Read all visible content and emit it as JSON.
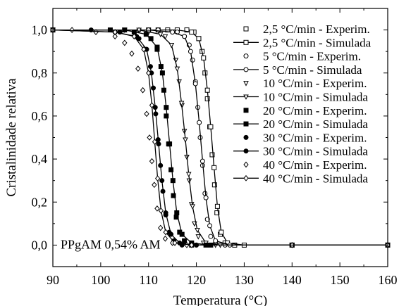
{
  "chart_data": {
    "type": "scatter",
    "xlabel": "Temperatura (°C)",
    "ylabel": "Cristalinidade relativa",
    "xlim": [
      90,
      160
    ],
    "ylim": [
      -0.1,
      1.1
    ],
    "xticks": [
      90,
      100,
      110,
      120,
      130,
      140,
      150,
      160
    ],
    "xtick_labels": [
      "90",
      "100",
      "110",
      "120",
      "130",
      "140",
      "150",
      "160"
    ],
    "yticks": [
      0.0,
      0.2,
      0.4,
      0.6,
      0.8,
      1.0
    ],
    "ytick_labels": [
      "0,0",
      "0,2",
      "0,4",
      "0,6",
      "0,8",
      "1,0"
    ],
    "annotation": "PPgAM 0,54% AM",
    "legend_position": "top-right",
    "grid": false,
    "series": [
      {
        "name": "2,5 °C/min - Experim.",
        "marker": "open-square",
        "style": "markers",
        "x": [
          110.0,
          114.0,
          118.0,
          119.5,
          120.5,
          121.2,
          121.8,
          122.3,
          122.8,
          123.3,
          123.8,
          124.3,
          125.0,
          126.0,
          128.0,
          140.0,
          160.0
        ],
        "y": [
          1.0,
          1.0,
          1.0,
          0.99,
          0.96,
          0.9,
          0.8,
          0.68,
          0.55,
          0.42,
          0.28,
          0.15,
          0.05,
          0.01,
          0.0,
          0.0,
          0.0
        ]
      },
      {
        "name": "2,5 °C/min - Simulada",
        "marker": "open-square",
        "style": "line+markers",
        "x": [
          90,
          112,
          116,
          119,
          120.5,
          121.5,
          122.3,
          123.0,
          123.7,
          124.4,
          125.2,
          126.5,
          130,
          160
        ],
        "y": [
          1.0,
          1.0,
          1.0,
          0.99,
          0.96,
          0.87,
          0.72,
          0.55,
          0.36,
          0.18,
          0.06,
          0.01,
          0.0,
          0.0
        ]
      },
      {
        "name": "5 °C/min - Experim.",
        "marker": "open-circle",
        "style": "markers",
        "x": [
          108.0,
          112.0,
          116.0,
          117.5,
          118.5,
          119.2,
          119.8,
          120.3,
          120.8,
          121.3,
          121.8,
          122.3,
          123.0,
          124.0,
          126.0,
          140.0
        ],
        "y": [
          1.0,
          1.0,
          0.99,
          0.97,
          0.93,
          0.86,
          0.76,
          0.64,
          0.5,
          0.37,
          0.24,
          0.12,
          0.04,
          0.01,
          0.0,
          0.0
        ]
      },
      {
        "name": "5 °C/min - Simulada",
        "marker": "open-circle",
        "style": "line+markers",
        "x": [
          90,
          110,
          115,
          117.5,
          118.8,
          119.8,
          120.6,
          121.3,
          122.0,
          122.8,
          124.0,
          127,
          160
        ],
        "y": [
          1.0,
          1.0,
          0.99,
          0.97,
          0.9,
          0.75,
          0.57,
          0.39,
          0.22,
          0.09,
          0.02,
          0.0,
          0.0
        ]
      },
      {
        "name": "10 °C/min - Experim.",
        "marker": "open-triangle-down",
        "style": "markers",
        "x": [
          105.0,
          110.0,
          113.5,
          114.8,
          115.7,
          116.4,
          117.0,
          117.5,
          118.0,
          118.5,
          119.0,
          119.6,
          120.4,
          121.5,
          124.0,
          140.0
        ],
        "y": [
          1.0,
          0.99,
          0.97,
          0.93,
          0.86,
          0.76,
          0.65,
          0.53,
          0.41,
          0.3,
          0.19,
          0.1,
          0.04,
          0.01,
          0.0,
          0.0
        ]
      },
      {
        "name": "10 °C/min - Simulada",
        "marker": "open-triangle-down",
        "style": "line+markers",
        "x": [
          90,
          108,
          112.5,
          114.8,
          116.0,
          116.9,
          117.7,
          118.4,
          119.2,
          120.2,
          122.0,
          125,
          160
        ],
        "y": [
          1.0,
          1.0,
          0.98,
          0.93,
          0.82,
          0.66,
          0.49,
          0.33,
          0.18,
          0.07,
          0.01,
          0.0,
          0.0
        ]
      },
      {
        "name": "20 °C/min - Experim.",
        "marker": "filled-square",
        "style": "markers",
        "x": [
          102.0,
          107.0,
          110.5,
          111.8,
          112.6,
          113.2,
          113.7,
          114.2,
          114.7,
          115.2,
          115.8,
          116.5,
          117.5,
          119.0,
          122.0,
          140.0
        ],
        "y": [
          1.0,
          0.99,
          0.96,
          0.91,
          0.83,
          0.72,
          0.6,
          0.47,
          0.35,
          0.23,
          0.13,
          0.06,
          0.02,
          0.0,
          0.0,
          0.0
        ]
      },
      {
        "name": "20 °C/min - Simulada",
        "marker": "filled-square",
        "style": "line+markers",
        "x": [
          90,
          105,
          109.5,
          111.8,
          112.9,
          113.7,
          114.4,
          115.1,
          115.9,
          117.0,
          119.0,
          123,
          160
        ],
        "y": [
          1.0,
          1.0,
          0.98,
          0.92,
          0.8,
          0.64,
          0.47,
          0.3,
          0.15,
          0.05,
          0.01,
          0.0,
          0.0
        ]
      },
      {
        "name": "30 °C/min - Experim.",
        "marker": "filled-circle",
        "style": "markers",
        "x": [
          98.0,
          104.0,
          108.0,
          109.5,
          110.4,
          111.0,
          111.5,
          112.0,
          112.5,
          113.0,
          113.6,
          114.3,
          115.3,
          117.0,
          120.0,
          140.0
        ],
        "y": [
          1.0,
          0.99,
          0.96,
          0.91,
          0.83,
          0.73,
          0.61,
          0.49,
          0.37,
          0.25,
          0.14,
          0.06,
          0.02,
          0.0,
          0.0,
          0.0
        ]
      },
      {
        "name": "30 °C/min - Simulada",
        "marker": "filled-circle",
        "style": "line+markers",
        "x": [
          90,
          103,
          107.5,
          109.6,
          110.6,
          111.4,
          112.1,
          112.8,
          113.6,
          114.7,
          116.5,
          120,
          160
        ],
        "y": [
          1.0,
          0.99,
          0.97,
          0.91,
          0.8,
          0.64,
          0.47,
          0.3,
          0.15,
          0.05,
          0.01,
          0.0,
          0.0
        ]
      },
      {
        "name": "40 °C/min - Experim.",
        "marker": "open-diamond",
        "style": "markers",
        "x": [
          94.0,
          99.0,
          103.0,
          105.0,
          106.5,
          107.8,
          108.8,
          109.6,
          110.2,
          110.7,
          111.2,
          111.8,
          112.5,
          113.5,
          115.0,
          118.0,
          140.0
        ],
        "y": [
          1.0,
          0.99,
          0.97,
          0.94,
          0.89,
          0.82,
          0.72,
          0.61,
          0.5,
          0.39,
          0.28,
          0.17,
          0.08,
          0.03,
          0.01,
          0.0,
          0.0
        ]
      },
      {
        "name": "40 °C/min - Simulada",
        "marker": "open-diamond",
        "style": "line+markers",
        "x": [
          90,
          103,
          107.0,
          109.0,
          110.0,
          110.7,
          111.3,
          111.9,
          112.6,
          113.6,
          115.5,
          119,
          160
        ],
        "y": [
          1.0,
          0.99,
          0.97,
          0.91,
          0.8,
          0.65,
          0.48,
          0.31,
          0.16,
          0.06,
          0.01,
          0.0,
          0.0
        ]
      }
    ]
  }
}
